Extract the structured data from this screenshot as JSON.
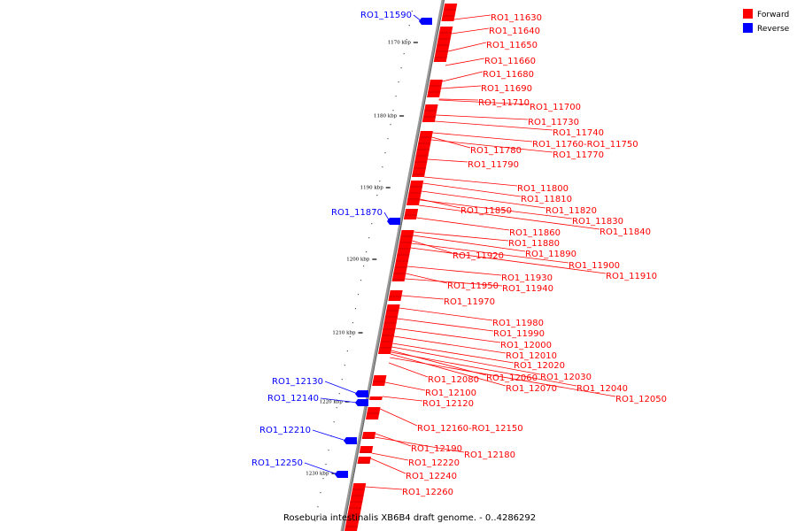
{
  "caption": "Roseburia intestinalis XB6B4 draft genome. - 0..4286292",
  "legend": [
    {
      "label": "Forward",
      "color": "#ff0000"
    },
    {
      "label": "Reverse",
      "color": "#0000ff"
    }
  ],
  "colors": {
    "forward": "#ff0000",
    "reverse": "#0000ff",
    "backbone": "#808080"
  },
  "ticks": [
    {
      "pos_kbp": 1170,
      "label": "1170 kbp"
    },
    {
      "pos_kbp": 1180,
      "label": "1180 kbp"
    },
    {
      "pos_kbp": 1190,
      "label": "1190 kbp"
    },
    {
      "pos_kbp": 1200,
      "label": "1200 kbp"
    },
    {
      "pos_kbp": 1210,
      "label": "1210 kbp"
    },
    {
      "pos_kbp": 1220,
      "label": "1220 kbp"
    },
    {
      "pos_kbp": 1230,
      "label": "1230 kbp"
    }
  ],
  "forward_genes": [
    "RO1_11630",
    "RO1_11640",
    "RO1_11650",
    "RO1_11660",
    "RO1_11680",
    "RO1_11690",
    "RO1_11710",
    "RO1_11700",
    "RO1_11730",
    "RO1_11740",
    "RO1_11760-RO1_11750",
    "RO1_11780",
    "RO1_11770",
    "RO1_11790",
    "RO1_11800",
    "RO1_11810",
    "RO1_11820",
    "RO1_11850",
    "RO1_11830",
    "RO1_11840",
    "RO1_11860",
    "RO1_11880",
    "RO1_11890",
    "RO1_11920",
    "RO1_11900",
    "RO1_11910",
    "RO1_11930",
    "RO1_11950",
    "RO1_11940",
    "RO1_11970",
    "RO1_11980",
    "RO1_11990",
    "RO1_12000",
    "RO1_12010",
    "RO1_12020",
    "RO1_12030",
    "RO1_12080",
    "RO1_12060",
    "RO1_12040",
    "RO1_12070",
    "RO1_12050",
    "RO1_12100",
    "RO1_12120",
    "RO1_12160-RO1_12150",
    "RO1_12190",
    "RO1_12180",
    "RO1_12220",
    "RO1_12240",
    "RO1_12260"
  ],
  "reverse_genes": [
    "RO1_11590",
    "RO1_11870",
    "RO1_12130",
    "RO1_12140",
    "RO1_12210",
    "RO1_12250"
  ]
}
